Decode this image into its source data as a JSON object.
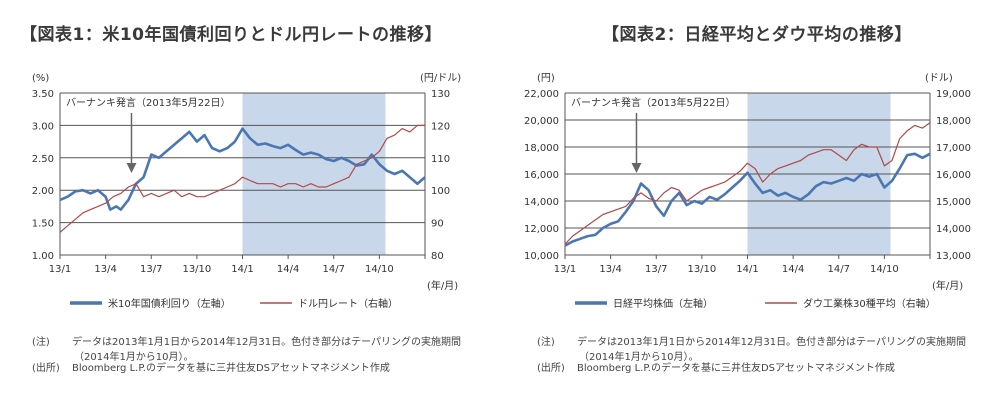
{
  "chart_data": [
    {
      "type": "line",
      "title": "【図表1：米10年国債利回りとドル円レートの推移】",
      "y_unit": "(%)",
      "y2_unit": "(円/ドル)",
      "x_unit": "(年/月)",
      "x_ticks": [
        "13/1",
        "13/4",
        "13/7",
        "13/10",
        "14/1",
        "14/4",
        "14/7",
        "14/10"
      ],
      "ylim": [
        1.0,
        3.5
      ],
      "y_ticks": [
        "1.00",
        "1.50",
        "2.00",
        "2.50",
        "3.00",
        "3.50"
      ],
      "y2lim": [
        80,
        130
      ],
      "y2_ticks": [
        "80",
        "90",
        "100",
        "110",
        "120",
        "130"
      ],
      "shaded_range": [
        "14/1",
        "14/10"
      ],
      "annotation": "バーナンキ発言（2013年5月22日）",
      "annotation_x": 4.7,
      "series": [
        {
          "name": "米10年国債利回り（左軸）",
          "axis": "left",
          "color": "#4a77b4",
          "x": [
            0,
            0.5,
            1,
            1.5,
            2,
            2.5,
            3,
            3.3,
            3.7,
            4,
            4.5,
            5,
            5.5,
            6,
            6.5,
            7,
            7.5,
            8,
            8.5,
            9,
            9.5,
            10,
            10.5,
            11,
            11.5,
            12,
            12.5,
            13,
            13.5,
            14,
            14.5,
            15,
            15.5,
            16,
            16.5,
            17,
            17.5,
            18,
            18.5,
            19,
            19.5,
            20,
            20.5,
            21,
            21.5,
            22,
            22.5,
            23,
            23.5,
            24
          ],
          "values": [
            1.85,
            1.9,
            1.98,
            2.0,
            1.95,
            2.0,
            1.9,
            1.7,
            1.75,
            1.7,
            1.85,
            2.1,
            2.2,
            2.55,
            2.5,
            2.6,
            2.7,
            2.8,
            2.9,
            2.75,
            2.85,
            2.65,
            2.6,
            2.65,
            2.75,
            2.95,
            2.8,
            2.7,
            2.72,
            2.68,
            2.65,
            2.7,
            2.62,
            2.55,
            2.58,
            2.55,
            2.48,
            2.45,
            2.5,
            2.45,
            2.38,
            2.4,
            2.55,
            2.4,
            2.3,
            2.25,
            2.3,
            2.2,
            2.1,
            2.2
          ]
        },
        {
          "name": "ドル円レート（右軸）",
          "axis": "right",
          "color": "#b14a46",
          "x": [
            0,
            0.5,
            1,
            1.5,
            2,
            2.5,
            3,
            3.5,
            4,
            4.5,
            5,
            5.5,
            6,
            6.5,
            7,
            7.5,
            8,
            8.5,
            9,
            9.5,
            10,
            10.5,
            11,
            11.5,
            12,
            12.5,
            13,
            13.5,
            14,
            14.5,
            15,
            15.5,
            16,
            16.5,
            17,
            17.5,
            18,
            18.5,
            19,
            19.5,
            20,
            20.5,
            21,
            21.5,
            22,
            22.5,
            23,
            23.5,
            24
          ],
          "values": [
            87,
            89,
            91,
            93,
            94,
            95,
            96,
            98,
            99,
            101,
            102,
            98,
            99,
            98,
            99,
            100,
            98,
            99,
            98,
            98,
            99,
            100,
            101,
            102,
            104,
            103,
            102,
            102,
            102,
            101,
            102,
            102,
            101,
            102,
            101,
            101,
            102,
            103,
            104,
            108,
            109,
            110,
            112,
            116,
            117,
            119,
            118,
            120,
            120
          ]
        }
      ]
    },
    {
      "type": "line",
      "title": "【図表2：日経平均とダウ平均の推移】",
      "y_unit": "(円)",
      "y2_unit": "(ドル)",
      "x_unit": "(年/月)",
      "x_ticks": [
        "13/1",
        "13/4",
        "13/7",
        "13/10",
        "14/1",
        "14/4",
        "14/7",
        "14/10"
      ],
      "ylim": [
        10000,
        22000
      ],
      "y_ticks": [
        "10,000",
        "12,000",
        "14,000",
        "16,000",
        "18,000",
        "20,000",
        "22,000"
      ],
      "y2lim": [
        13000,
        19000
      ],
      "y2_ticks": [
        "13,000",
        "14,000",
        "15,000",
        "16,000",
        "17,000",
        "18,000",
        "19,000"
      ],
      "shaded_range": [
        "14/1",
        "14/10"
      ],
      "annotation": "バーナンキ発言（2013年5月22日）",
      "annotation_x": 4.7,
      "series": [
        {
          "name": "日経平均株価（左軸）",
          "axis": "left",
          "color": "#4a77b4",
          "x": [
            0,
            0.5,
            1,
            1.5,
            2,
            2.5,
            3,
            3.5,
            4,
            4.5,
            5,
            5.5,
            6,
            6.5,
            7,
            7.5,
            8,
            8.5,
            9,
            9.5,
            10,
            10.5,
            11,
            11.5,
            12,
            12.5,
            13,
            13.5,
            14,
            14.5,
            15,
            15.5,
            16,
            16.5,
            17,
            17.5,
            18,
            18.5,
            19,
            19.5,
            20,
            20.5,
            21,
            21.5,
            22,
            22.5,
            23,
            23.5,
            24
          ],
          "values": [
            10700,
            11000,
            11200,
            11400,
            11500,
            12000,
            12300,
            12500,
            13200,
            14000,
            15300,
            14800,
            13600,
            12900,
            14000,
            14600,
            13700,
            14000,
            13800,
            14300,
            14100,
            14500,
            15000,
            15500,
            16100,
            15300,
            14600,
            14800,
            14400,
            14600,
            14300,
            14100,
            14500,
            15100,
            15400,
            15300,
            15500,
            15700,
            15500,
            16000,
            15800,
            16000,
            15000,
            15500,
            16400,
            17400,
            17500,
            17200,
            17500
          ]
        },
        {
          "name": "ダウ工業株30種平均（右軸）",
          "axis": "right",
          "color": "#b14a46",
          "x": [
            0,
            0.5,
            1,
            1.5,
            2,
            2.5,
            3,
            3.5,
            4,
            4.5,
            5,
            5.5,
            6,
            6.5,
            7,
            7.5,
            8,
            8.5,
            9,
            9.5,
            10,
            10.5,
            11,
            11.5,
            12,
            12.5,
            13,
            13.5,
            14,
            14.5,
            15,
            15.5,
            16,
            16.5,
            17,
            17.5,
            18,
            18.5,
            19,
            19.5,
            20,
            20.5,
            21,
            21.5,
            22,
            22.5,
            23,
            23.5,
            24
          ],
          "values": [
            13400,
            13700,
            13900,
            14100,
            14300,
            14500,
            14600,
            14700,
            14800,
            15100,
            15300,
            15100,
            15000,
            15300,
            15500,
            15400,
            15000,
            15200,
            15400,
            15500,
            15600,
            15700,
            15900,
            16100,
            16400,
            16200,
            15700,
            16000,
            16200,
            16300,
            16400,
            16500,
            16700,
            16800,
            16900,
            16900,
            16700,
            16500,
            16900,
            17100,
            17000,
            17000,
            16300,
            16500,
            17300,
            17600,
            17800,
            17700,
            17900
          ]
        }
      ]
    }
  ],
  "notes": [
    {
      "key": "(注)",
      "line1": "データは2013年1月1日から2014年12月31日。色付き部分はテーパリングの実施期間",
      "line2": "（2014年1月から10月）。"
    },
    {
      "key": "(出所)",
      "line1": "Bloomberg L.P.のデータを基に三井住友DSアセットマネジメント作成"
    }
  ]
}
